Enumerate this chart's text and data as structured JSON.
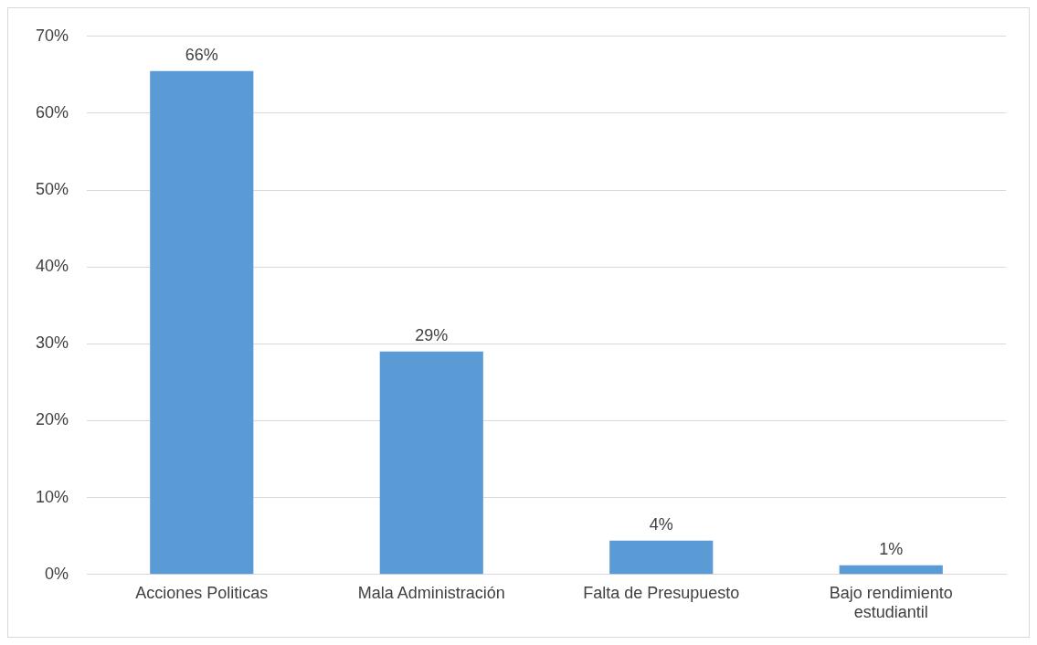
{
  "chart_data": {
    "type": "bar",
    "categories": [
      "Acciones Politicas",
      "Mala Administración",
      "Falta de Presupuesto",
      "Bajo rendimiento estudiantil"
    ],
    "values": [
      65.5,
      29,
      4.4,
      1.2
    ],
    "value_labels": [
      "66%",
      "29%",
      "4%",
      "1%"
    ],
    "color": "#5b9bd5",
    "ylim": [
      0,
      70
    ],
    "yticks": [
      {
        "value": 0,
        "label": "0%"
      },
      {
        "value": 10,
        "label": "10%"
      },
      {
        "value": 20,
        "label": "20%"
      },
      {
        "value": 30,
        "label": "30%"
      },
      {
        "value": 40,
        "label": "40%"
      },
      {
        "value": 50,
        "label": "50%"
      },
      {
        "value": 60,
        "label": "60%"
      },
      {
        "value": 70,
        "label": "70%"
      }
    ],
    "grid": "y",
    "legend": false
  }
}
